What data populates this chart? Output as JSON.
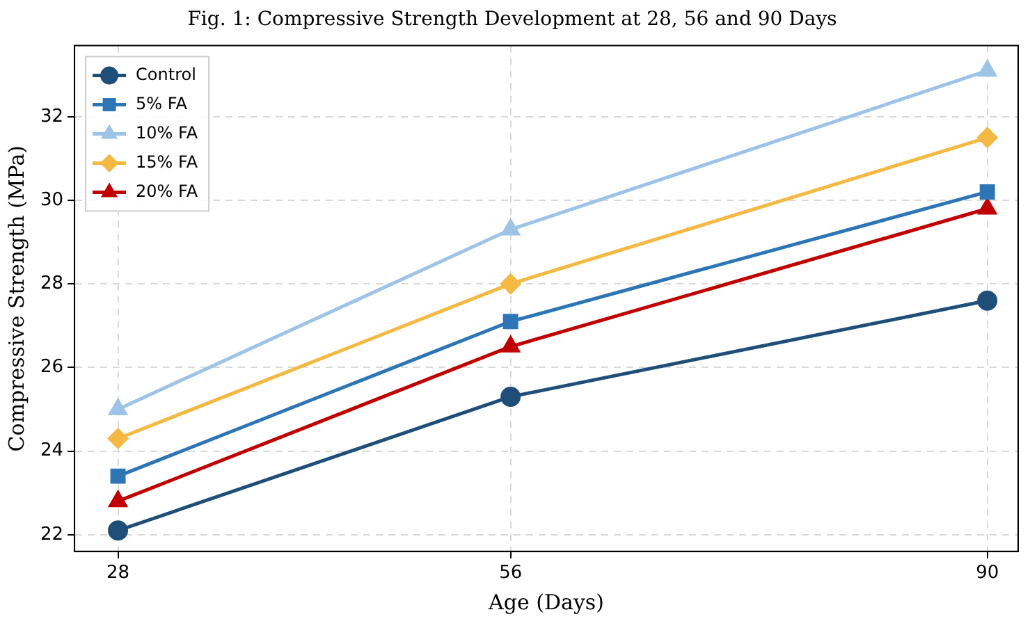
{
  "chart_data": {
    "type": "line",
    "title": "Fig. 1: Compressive Strength Development at 28, 56 and 90 Days",
    "xlabel": "Age (Days)",
    "ylabel": "Compressive Strength (MPa)",
    "x": [
      28,
      56,
      90
    ],
    "xlim": [
      24.9,
      92.2
    ],
    "xticks": [
      28,
      56,
      90
    ],
    "ylim": [
      21.6,
      33.7
    ],
    "yticks": [
      22,
      24,
      26,
      28,
      30,
      32
    ],
    "grid": true,
    "legend": "top left",
    "line_style": "solid",
    "series": [
      {
        "name": "Control",
        "color": "#1f4e79",
        "marker": "circle",
        "values": [
          22.1,
          25.3,
          27.6
        ]
      },
      {
        "name": "5% FA",
        "color": "#2e75b6",
        "marker": "square",
        "values": [
          23.4,
          27.1,
          30.2
        ]
      },
      {
        "name": "10% FA",
        "color": "#9dc3e6",
        "marker": "triangle",
        "values": [
          25.0,
          29.3,
          33.1
        ]
      },
      {
        "name": "15% FA",
        "color": "#f4b942",
        "marker": "diamond",
        "values": [
          24.3,
          28.0,
          31.5
        ]
      },
      {
        "name": "20% FA",
        "color": "#c00000",
        "marker": "triangle",
        "values": [
          22.8,
          26.5,
          29.8
        ]
      }
    ]
  }
}
